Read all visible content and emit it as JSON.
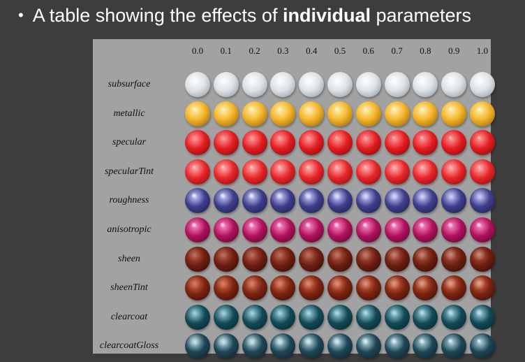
{
  "slide": {
    "bullet": "•",
    "title_prefix": "A table showing the effects of ",
    "title_emphasis": "individual",
    "title_suffix": " parameters"
  },
  "table": {
    "columns": [
      "0.0",
      "0.1",
      "0.2",
      "0.3",
      "0.4",
      "0.5",
      "0.6",
      "0.7",
      "0.8",
      "0.9",
      "1.0"
    ],
    "rows": [
      {
        "label": "subsurface",
        "base": "#dde2e6",
        "dark": "#8a949b",
        "light": "#ffffff",
        "gloss_from": 0.3,
        "gloss_to": 0.3,
        "blur_from": 0,
        "blur_to": 0
      },
      {
        "label": "metallic",
        "base": "#f3b42a",
        "dark": "#8a5a06",
        "light": "#fff1b0",
        "gloss_from": 0.45,
        "gloss_to": 0.95,
        "blur_from": 0,
        "blur_to": 0
      },
      {
        "label": "specular",
        "base": "#e41e22",
        "dark": "#7a0508",
        "light": "#ff9a9a",
        "gloss_from": 0.15,
        "gloss_to": 0.75,
        "blur_from": 0,
        "blur_to": 0
      },
      {
        "label": "specularTint",
        "base": "#e8262a",
        "dark": "#7d0a0c",
        "light": "#ffb0b0",
        "gloss_from": 0.6,
        "gloss_to": 0.35,
        "blur_from": 0,
        "blur_to": 0
      },
      {
        "label": "roughness",
        "base": "#3e3f8a",
        "dark": "#1a1b4a",
        "light": "#c8caff",
        "gloss_from": 0.95,
        "gloss_to": 0.1,
        "blur_from": 0.2,
        "blur_to": 1
      },
      {
        "label": "anisotropic",
        "base": "#b0125e",
        "dark": "#520326",
        "light": "#ff8cc4",
        "gloss_from": 0.85,
        "gloss_to": 0.85,
        "blur_from": 0.2,
        "blur_to": 0.2
      },
      {
        "label": "sheen",
        "base": "#6e1f10",
        "dark": "#2e0905",
        "light": "#b85a48",
        "gloss_from": 0.05,
        "gloss_to": 0.35,
        "blur_from": 1,
        "blur_to": 1
      },
      {
        "label": "sheenTint",
        "base": "#7c2412",
        "dark": "#330c05",
        "light": "#d86a4a",
        "gloss_from": 0.15,
        "gloss_to": 0.45,
        "blur_from": 1,
        "blur_to": 1
      },
      {
        "label": "clearcoat",
        "base": "#134a58",
        "dark": "#062028",
        "light": "#9fd4e0",
        "gloss_from": 0.05,
        "gloss_to": 0.55,
        "blur_from": 0.4,
        "blur_to": 0.4
      },
      {
        "label": "clearcoatGloss",
        "base": "#1f4656",
        "dark": "#0b1e26",
        "light": "#b8dce6",
        "gloss_from": 0.35,
        "gloss_to": 0.85,
        "blur_from": 1,
        "blur_to": 0.1
      }
    ]
  }
}
